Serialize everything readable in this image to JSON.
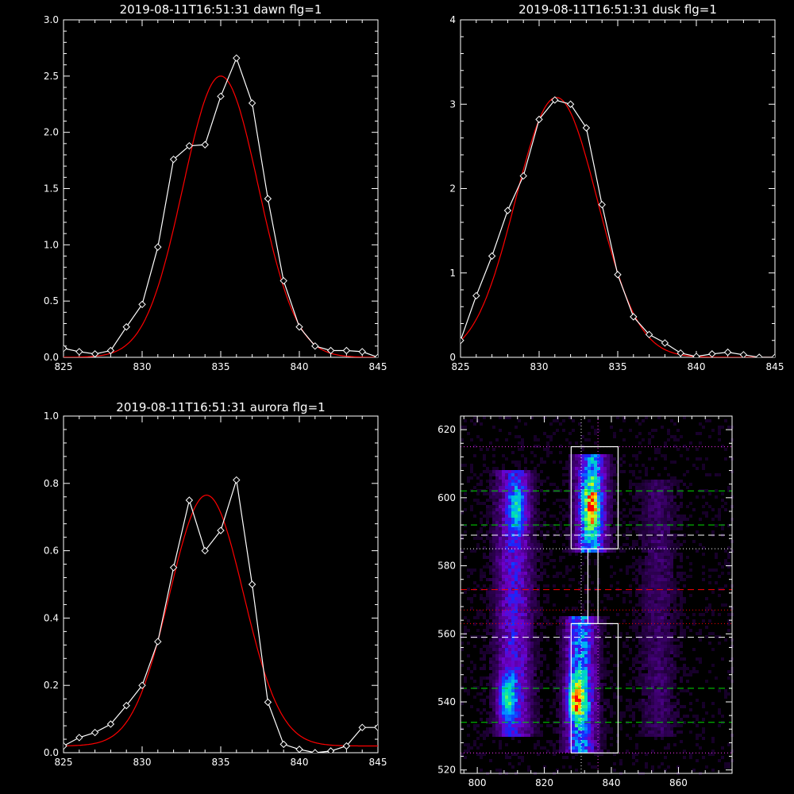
{
  "colors": {
    "background": "#000000",
    "axis": "#ffffff",
    "observed": "#ffffff",
    "fit": "#ff0000"
  },
  "chart_data": [
    {
      "id": "dawn",
      "type": "line",
      "title": "2019-08-11T16:51:31 dawn flg=1",
      "xlabel": "",
      "ylabel": "",
      "xlim": [
        825,
        845
      ],
      "ylim": [
        0,
        3.0
      ],
      "xticks": [
        "825",
        "830",
        "835",
        "840",
        "845"
      ],
      "yticks": [
        "0.0",
        "0.5",
        "1.0",
        "1.5",
        "2.0",
        "2.5",
        "3.0"
      ],
      "series": [
        {
          "kind": "observed",
          "marker": "diamond",
          "x": [
            825,
            826,
            827,
            828,
            829,
            830,
            831,
            832,
            833,
            834,
            835,
            836,
            837,
            838,
            839,
            840,
            841,
            842,
            843,
            844,
            845
          ],
          "y": [
            0.08,
            0.05,
            0.03,
            0.06,
            0.27,
            0.47,
            0.98,
            1.76,
            1.88,
            1.89,
            2.32,
            2.66,
            2.26,
            1.41,
            0.68,
            0.27,
            0.1,
            0.06,
            0.06,
            0.05,
            0.0
          ]
        },
        {
          "kind": "fit",
          "mu": 835.0,
          "sigma": 2.4,
          "amp": 2.5,
          "base": 0.0
        }
      ]
    },
    {
      "id": "dusk",
      "type": "line",
      "title": "2019-08-11T16:51:31 dusk flg=1",
      "xlabel": "",
      "ylabel": "",
      "xlim": [
        825,
        845
      ],
      "ylim": [
        0,
        4
      ],
      "xticks": [
        "825",
        "830",
        "835",
        "840",
        "845"
      ],
      "yticks": [
        "0",
        "1",
        "2",
        "3",
        "4"
      ],
      "series": [
        {
          "kind": "observed",
          "marker": "diamond",
          "x": [
            825,
            826,
            827,
            828,
            829,
            830,
            831,
            832,
            833,
            834,
            835,
            836,
            837,
            838,
            839,
            840,
            841,
            842,
            843,
            844,
            845
          ],
          "y": [
            0.2,
            0.73,
            1.2,
            1.74,
            2.15,
            2.82,
            3.05,
            3.0,
            2.72,
            1.81,
            0.98,
            0.48,
            0.27,
            0.17,
            0.05,
            0.01,
            0.04,
            0.06,
            0.03,
            0.0,
            0.0
          ]
        },
        {
          "kind": "fit",
          "mu": 831.1,
          "sigma": 2.6,
          "amp": 3.08,
          "base": 0.0
        }
      ]
    },
    {
      "id": "aurora",
      "type": "line",
      "title": "2019-08-11T16:51:31 aurora flg=1",
      "xlabel": "",
      "ylabel": "",
      "xlim": [
        825,
        845
      ],
      "ylim": [
        0,
        1.0
      ],
      "xticks": [
        "825",
        "830",
        "835",
        "840",
        "845"
      ],
      "yticks": [
        "0.0",
        "0.2",
        "0.4",
        "0.6",
        "0.8",
        "1.0"
      ],
      "series": [
        {
          "kind": "observed",
          "marker": "diamond",
          "x": [
            825,
            826,
            827,
            828,
            829,
            830,
            831,
            832,
            833,
            834,
            835,
            836,
            837,
            838,
            839,
            840,
            841,
            842,
            843,
            844,
            845
          ],
          "y": [
            0.02,
            0.045,
            0.06,
            0.085,
            0.14,
            0.2,
            0.33,
            0.55,
            0.75,
            0.6,
            0.66,
            0.81,
            0.5,
            0.15,
            0.025,
            0.01,
            0.0,
            0.005,
            0.02,
            0.075,
            0.075
          ]
        },
        {
          "kind": "fit",
          "mu": 834.1,
          "sigma": 2.35,
          "amp": 0.745,
          "base": 0.02
        }
      ]
    },
    {
      "id": "image",
      "type": "heatmap",
      "title": "",
      "xlabel": "",
      "ylabel": "",
      "xlim": [
        795,
        876
      ],
      "ylim": [
        519,
        624
      ],
      "xticks": [
        "800",
        "820",
        "840",
        "860"
      ],
      "yticks": [
        "520",
        "540",
        "560",
        "580",
        "600",
        "620"
      ],
      "intensity_bands": [
        {
          "x": 811,
          "xwidth": 3.5,
          "y": [
            530,
            608
          ],
          "level": 0.35
        },
        {
          "x": 831,
          "xwidth": 3.0,
          "y": [
            525,
            565
          ],
          "level": 0.55
        },
        {
          "x": 834,
          "xwidth": 3.0,
          "y": [
            584,
            613
          ],
          "level": 0.6
        },
        {
          "x": 854,
          "xwidth": 3.5,
          "y": [
            530,
            605
          ],
          "level": 0.12
        }
      ],
      "hot_spots": [
        {
          "x": 829.5,
          "y": 541,
          "level": 1.0
        },
        {
          "x": 809,
          "y": 541,
          "level": 0.75
        },
        {
          "x": 834,
          "y": 597,
          "level": 0.85
        },
        {
          "x": 812,
          "y": 597,
          "level": 0.6
        }
      ],
      "boxes": [
        {
          "x0": 828,
          "x1": 842,
          "y0": 525,
          "y1": 563,
          "color": "#ffffff"
        },
        {
          "x0": 828,
          "x1": 842,
          "y0": 585,
          "y1": 615,
          "color": "#ffffff"
        },
        {
          "x0": 833,
          "x1": 836,
          "y0": 563,
          "y1": 585,
          "color": "#ffffff"
        }
      ],
      "hlines": [
        {
          "y": 615,
          "style": "dotted",
          "color": "#ff33ff"
        },
        {
          "y": 602,
          "style": "dashed",
          "color": "#00dd00"
        },
        {
          "y": 592,
          "style": "dashed",
          "color": "#00dd00"
        },
        {
          "y": 589,
          "style": "dashed",
          "color": "#ffffff"
        },
        {
          "y": 585,
          "style": "dotted",
          "color": "#ffffff"
        },
        {
          "y": 573,
          "style": "dashed",
          "color": "#ff0000"
        },
        {
          "y": 567,
          "style": "dotted",
          "color": "#ff0000"
        },
        {
          "y": 563,
          "style": "dotted",
          "color": "#ff0000"
        },
        {
          "y": 559,
          "style": "dashed",
          "color": "#ffffff"
        },
        {
          "y": 544,
          "style": "dashed",
          "color": "#00dd00"
        },
        {
          "y": 534,
          "style": "dashed",
          "color": "#00dd00"
        },
        {
          "y": 525,
          "style": "dotted",
          "color": "#ff33ff"
        }
      ],
      "vlines": [
        {
          "x": 831,
          "style": "dotted",
          "color": "#ffffff"
        },
        {
          "x": 836,
          "style": "dotted",
          "color": "#ff33ff"
        }
      ]
    }
  ]
}
